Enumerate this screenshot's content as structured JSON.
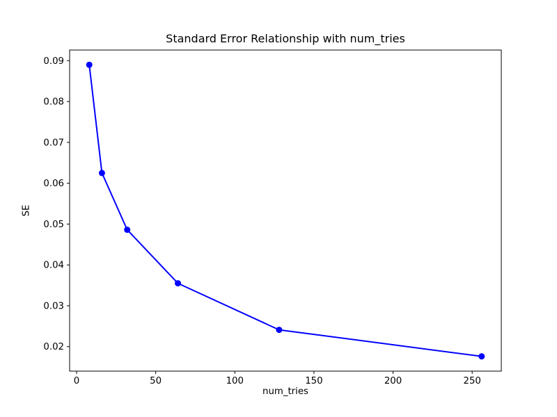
{
  "figure": {
    "background_color": "#ffffff",
    "spine_color": "#000000",
    "tick_color": "#000000",
    "text_color": "#000000"
  },
  "chart_data": {
    "type": "line",
    "title": "Standard Error Relationship with num_tries",
    "xlabel": "num_tries",
    "ylabel": "SE",
    "x": [
      8,
      16,
      32,
      64,
      128,
      256
    ],
    "y": [
      0.089,
      0.0625,
      0.0486,
      0.0355,
      0.0241,
      0.0176
    ],
    "series_name": "SE vs num_tries",
    "line_color": "#0000ff",
    "marker": "o",
    "marker_color": "#0000ff",
    "xlim": [
      -4.4,
      268.4
    ],
    "ylim": [
      0.014,
      0.0926
    ],
    "xtick_values": [
      0,
      50,
      100,
      150,
      200,
      250
    ],
    "xtick_labels": [
      "0",
      "50",
      "100",
      "150",
      "200",
      "250"
    ],
    "ytick_values": [
      0.02,
      0.03,
      0.04,
      0.05,
      0.06,
      0.07,
      0.08,
      0.09
    ],
    "ytick_labels": [
      "0.02",
      "0.03",
      "0.04",
      "0.05",
      "0.06",
      "0.07",
      "0.08",
      "0.09"
    ],
    "grid": false,
    "legend": null
  }
}
